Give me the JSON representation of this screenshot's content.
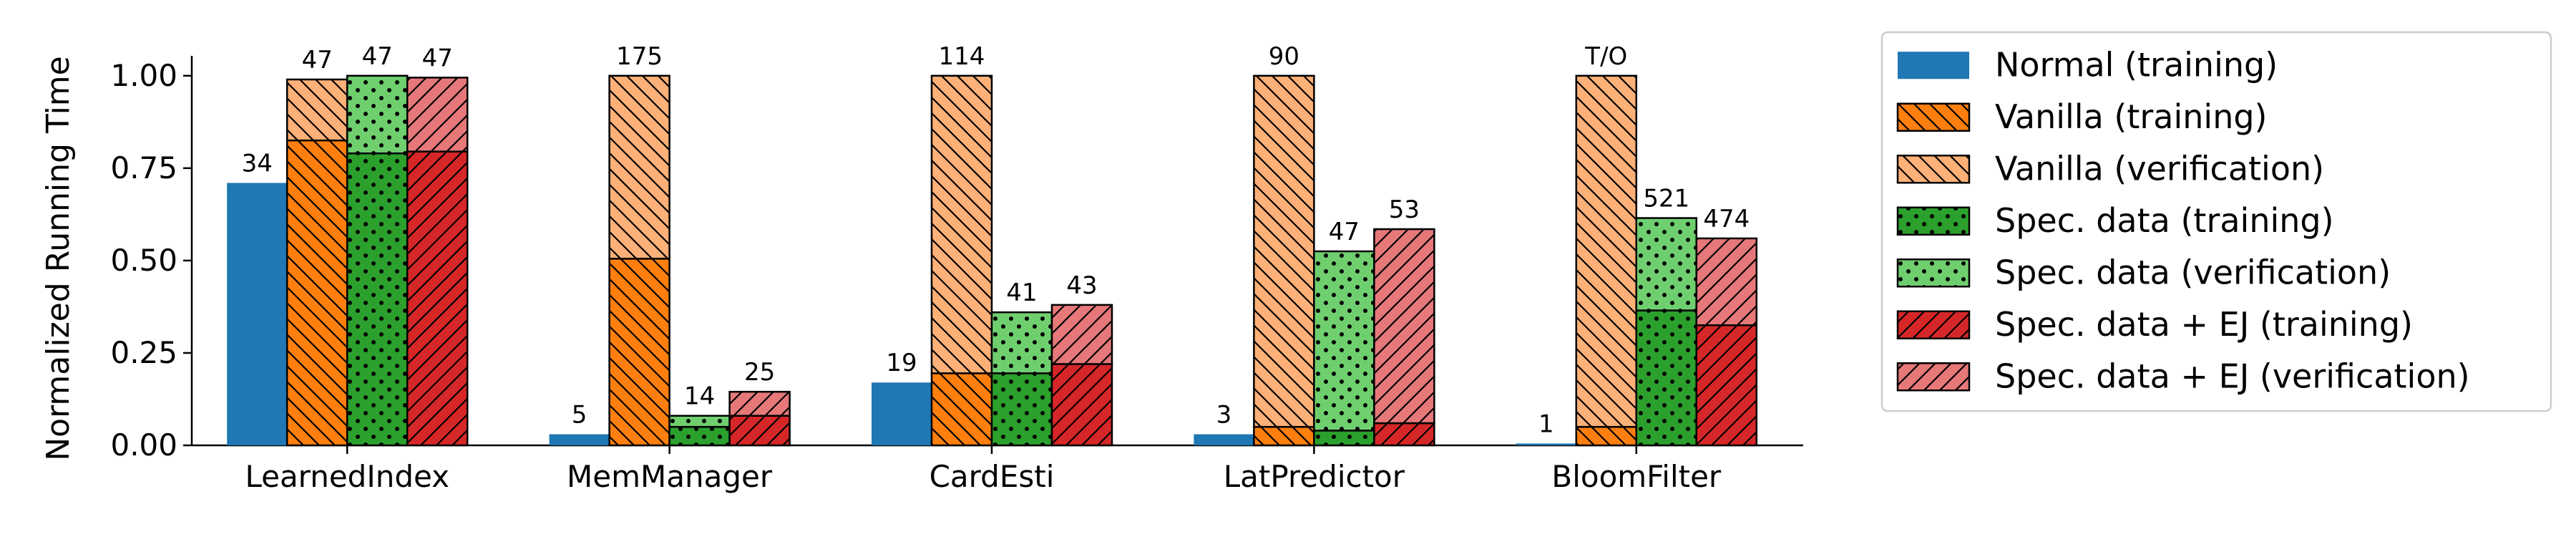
{
  "chart_data": {
    "type": "bar",
    "ylabel": "Normalized Running Time",
    "xlabel": "",
    "ylim": [
      0,
      1.05
    ],
    "yticks": [
      "0.00",
      "0.25",
      "0.50",
      "0.75",
      "1.00"
    ],
    "categories": [
      "LearnedIndex",
      "MemManager",
      "CardEsti",
      "LatPredictor",
      "BloomFilter"
    ],
    "legend_position": "right-outside",
    "series": [
      {
        "name": "Normal (training)",
        "color": "#1f77b4",
        "hatch": "none"
      },
      {
        "name": "Vanilla (training)",
        "color": "#ff7f0e",
        "hatch": "diag-back"
      },
      {
        "name": "Vanilla (verification)",
        "color": "#fdb077",
        "hatch": "diag-back"
      },
      {
        "name": "Spec. data (training)",
        "color": "#2ca02c",
        "hatch": "dots"
      },
      {
        "name": "Spec. data (verification)",
        "color": "#6fcf6f",
        "hatch": "dots"
      },
      {
        "name": "Spec. data + EJ (training)",
        "color": "#d62728",
        "hatch": "diag-fwd"
      },
      {
        "name": "Spec. data + EJ (verification)",
        "color": "#e6787a",
        "hatch": "diag-fwd"
      }
    ],
    "groups": [
      {
        "category": "LearnedIndex",
        "bars": [
          {
            "training": 0.71,
            "verification": 0,
            "label": "34"
          },
          {
            "training": 0.825,
            "verification": 0.165,
            "label": "47"
          },
          {
            "training": 0.79,
            "verification": 0.21,
            "label": "47"
          },
          {
            "training": 0.795,
            "verification": 0.2,
            "label": "47"
          }
        ]
      },
      {
        "category": "MemManager",
        "bars": [
          {
            "training": 0.03,
            "verification": 0,
            "label": "5"
          },
          {
            "training": 0.505,
            "verification": 0.495,
            "label": "175"
          },
          {
            "training": 0.05,
            "verification": 0.03,
            "label": "14"
          },
          {
            "training": 0.08,
            "verification": 0.065,
            "label": "25"
          }
        ]
      },
      {
        "category": "CardEsti",
        "bars": [
          {
            "training": 0.17,
            "verification": 0,
            "label": "19"
          },
          {
            "training": 0.195,
            "verification": 0.805,
            "label": "114"
          },
          {
            "training": 0.195,
            "verification": 0.165,
            "label": "41"
          },
          {
            "training": 0.22,
            "verification": 0.16,
            "label": "43"
          }
        ]
      },
      {
        "category": "LatPredictor",
        "bars": [
          {
            "training": 0.03,
            "verification": 0,
            "label": "3"
          },
          {
            "training": 0.05,
            "verification": 0.95,
            "label": "90"
          },
          {
            "training": 0.04,
            "verification": 0.485,
            "label": "47"
          },
          {
            "training": 0.06,
            "verification": 0.525,
            "label": "53"
          }
        ]
      },
      {
        "category": "BloomFilter",
        "bars": [
          {
            "training": 0.005,
            "verification": 0,
            "label": "1"
          },
          {
            "training": 0.05,
            "verification": 0.95,
            "label": "T/O"
          },
          {
            "training": 0.365,
            "verification": 0.25,
            "label": "521"
          },
          {
            "training": 0.325,
            "verification": 0.235,
            "label": "474"
          }
        ]
      }
    ]
  }
}
